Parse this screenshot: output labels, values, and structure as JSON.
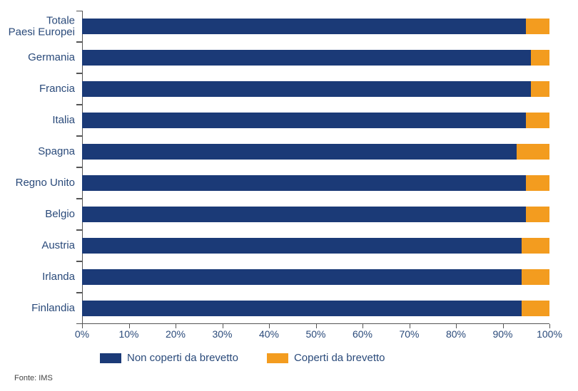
{
  "chart": {
    "type": "stacked-bar-horizontal",
    "background_color": "#ffffff",
    "label_color": "#2a4a7a",
    "axis_color": "#555555",
    "label_fontsize": 15,
    "tick_fontsize": 14,
    "bar_height_ratio": 0.52,
    "xlim": [
      0,
      100
    ],
    "xtick_step": 10,
    "xtick_suffix": "%",
    "series": [
      {
        "key": "non_coperti",
        "label": "Non coperti da brevetto",
        "color": "#1b3a77"
      },
      {
        "key": "coperti",
        "label": "Coperti da brevetto",
        "color": "#f39c1f"
      }
    ],
    "categories": [
      {
        "label": "Totale\nPaesi Europei",
        "values": {
          "non_coperti": 95,
          "coperti": 5
        }
      },
      {
        "label": "Germania",
        "values": {
          "non_coperti": 96,
          "coperti": 4
        }
      },
      {
        "label": "Francia",
        "values": {
          "non_coperti": 96,
          "coperti": 4
        }
      },
      {
        "label": "Italia",
        "values": {
          "non_coperti": 95,
          "coperti": 5
        }
      },
      {
        "label": "Spagna",
        "values": {
          "non_coperti": 93,
          "coperti": 7
        }
      },
      {
        "label": "Regno Unito",
        "values": {
          "non_coperti": 95,
          "coperti": 5
        }
      },
      {
        "label": "Belgio",
        "values": {
          "non_coperti": 95,
          "coperti": 5
        }
      },
      {
        "label": "Austria",
        "values": {
          "non_coperti": 94,
          "coperti": 6
        }
      },
      {
        "label": "Irlanda",
        "values": {
          "non_coperti": 94,
          "coperti": 6
        }
      },
      {
        "label": "Finlandia",
        "values": {
          "non_coperti": 94,
          "coperti": 6
        }
      }
    ]
  },
  "source_label": "Fonte: IMS"
}
